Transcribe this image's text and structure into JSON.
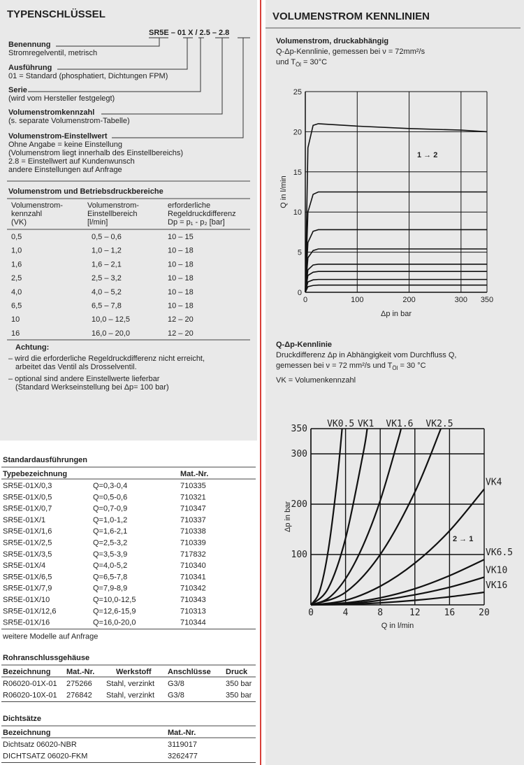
{
  "left": {
    "title": "TYPENSCHLÜSSEL",
    "code": [
      "SR5E",
      "–",
      "01",
      "X",
      "/",
      "2.5",
      "–",
      "2.8"
    ],
    "key": [
      {
        "label": "Benennung",
        "lines": [
          "Stromregelventil, metrisch"
        ]
      },
      {
        "label": "Ausführung",
        "lines": [
          "01 = Standard (phosphatiert, Dichtungen FPM)"
        ]
      },
      {
        "label": "Serie",
        "lines": [
          "(wird vom Hersteller festgelegt)"
        ]
      },
      {
        "label": "Volumenstromkennzahl",
        "lines": [
          "(s. separate Volumenstrom-Tabelle)"
        ]
      },
      {
        "label": "Volumenstrom-Einstellwert",
        "lines": [
          "Ohne Angabe = keine Einstellung",
          "(Volumenstrom liegt innerhalb des Einstellbereichs)",
          "2.8 = Einstellwert auf Kundenwunsch",
          "andere Einstellungen auf Anfrage"
        ]
      }
    ],
    "ranges": {
      "title": "Volumenstrom und Betriebsdruckbereiche",
      "headers": [
        [
          "Volumenstrom-",
          "kennzahl",
          "(VK)"
        ],
        [
          "Volumenstrom-",
          "Einstellbereich",
          "[l/min]"
        ],
        [
          "erforderliche",
          "Regeldruckdifferenz",
          "Dp = p₁ - p₂ [bar]"
        ]
      ],
      "rows": [
        [
          "0,5",
          "0,5 – 0,6",
          "10 – 15"
        ],
        [
          "1,0",
          "1,0 – 1,2",
          "10 – 18"
        ],
        [
          "1,6",
          "1,6 – 2,1",
          "10 – 18"
        ],
        [
          "2,5",
          "2,5 – 3,2",
          "10 – 18"
        ],
        [
          "4,0",
          "4,0 – 5,2",
          "10 – 18"
        ],
        [
          "6,5",
          "6,5 – 7,8",
          "10 – 18"
        ],
        [
          "10",
          "10,0 – 12,5",
          "12 – 20"
        ],
        [
          "16",
          "16,0 – 20,0",
          "12 – 20"
        ]
      ]
    },
    "note": {
      "title": "Achtung:",
      "items": [
        [
          "– wird die erforderliche Regeldruckdifferenz nicht erreicht,",
          "arbeitet das Ventil als Drosselventil."
        ],
        [
          "– optional sind andere Einstellwerte lieferbar",
          "(Standard Werkseinstellung bei Δp= 100 bar)"
        ]
      ]
    }
  },
  "standard": {
    "title": "Standardausführungen",
    "headers": [
      "Typebezeichnung",
      "Mat.-Nr."
    ],
    "rows": [
      [
        "SR5E-01X/0,3",
        "Q=0,3-0,4",
        "710335"
      ],
      [
        "SR5E-01X/0,5",
        "Q=0,5-0,6",
        "710321"
      ],
      [
        "SR5E-01X/0,7",
        "Q=0,7-0,9",
        "710347"
      ],
      [
        "SR5E-01X/1",
        "Q=1,0-1,2",
        "710337"
      ],
      [
        "SR5E-01X/1,6",
        "Q=1,6-2,1",
        "710338"
      ],
      [
        "SR5E-01X/2,5",
        "Q=2,5-3,2",
        "710339"
      ],
      [
        "SR5E-01X/3,5",
        "Q=3,5-3,9",
        "717832"
      ],
      [
        "SR5E-01X/4",
        "Q=4,0-5,2",
        "710340"
      ],
      [
        "SR5E-01X/6,5",
        "Q=6,5-7,8",
        "710341"
      ],
      [
        "SR5E-01X/7,9",
        "Q=7,9-8,9",
        "710342"
      ],
      [
        "SR5E-01X/10",
        "Q=10,0-12,5",
        "710343"
      ],
      [
        "SR5E-01X/12,6",
        "Q=12,6-15,9",
        "710313"
      ],
      [
        "SR5E-01X/16",
        "Q=16,0-20,0",
        "710344"
      ]
    ],
    "footer": "weitere Modelle auf Anfrage"
  },
  "housing": {
    "title": "Rohranschlussgehäuse",
    "headers": [
      "Bezeichnung",
      "Mat.-Nr.",
      "Werkstoff",
      "Anschlüsse",
      "Druck"
    ],
    "rows": [
      [
        "R06020-01X-01",
        "275266",
        "Stahl, verzinkt",
        "G3/8",
        "350 bar"
      ],
      [
        "R06020-10X-01",
        "276842",
        "Stahl, verzinkt",
        "G3/8",
        "350 bar"
      ]
    ]
  },
  "seals": {
    "title": "Dichtsätze",
    "headers": [
      "Bezeichnung",
      "Mat.-Nr."
    ],
    "rows": [
      [
        "Dichtsatz 06020-NBR",
        "3119017"
      ],
      [
        "DICHTSATZ 06020-FKM",
        "3262477"
      ]
    ]
  },
  "right": {
    "title": "VOLUMENSTROM KENNLINIEN",
    "sub1": {
      "title": "Volumenstrom, druckabhängig",
      "lines": [
        "Q-Δp-Kennlinie, gemessen bei ν = 72mm²/s"
      ],
      "temp": {
        "pre": "und T",
        "sub": "Öl",
        "post": " = 30°C"
      }
    },
    "sub2": {
      "title": "Q-Δp-Kennlinie",
      "lines": [
        "Druckdifferenz Δp in Abhängigkeit vom Durchfluss Q,"
      ],
      "temp": {
        "pre": "gemessen bei ν = 72 mm²/s und T",
        "sub": "Öl",
        "post": " = 30 °C"
      },
      "note": "VK = Volumenkennzahl"
    }
  },
  "chart_data": [
    {
      "type": "line",
      "xlabel": "Δp in bar",
      "ylabel": "Q in l/min",
      "annotation": "1 → 2",
      "xlim": [
        0,
        350
      ],
      "ylim": [
        0,
        25
      ],
      "xticks": [
        0,
        100,
        200,
        300,
        350
      ],
      "yticks": [
        0,
        5,
        10,
        15,
        20,
        25
      ],
      "grid": true,
      "x": [
        0,
        5,
        15,
        25,
        100,
        200,
        300,
        350
      ],
      "series": [
        {
          "color": "#111111",
          "values": [
            0,
            18,
            20.8,
            21,
            20.7,
            20.4,
            20.2,
            20
          ]
        },
        {
          "color": "#111111",
          "values": [
            0,
            10,
            12.2,
            12.5,
            12.5,
            12.5,
            12.5,
            12.5
          ]
        },
        {
          "color": "#111111",
          "values": [
            0,
            6.2,
            7.6,
            7.8,
            7.8,
            7.8,
            7.8,
            7.8
          ]
        },
        {
          "color": "#111111",
          "values": [
            0,
            4.3,
            5.2,
            5.4,
            5.4,
            5.4,
            5.4,
            5.4
          ]
        },
        {
          "color": "#111111",
          "values": [
            0,
            2.8,
            3.4,
            3.5,
            3.5,
            3.5,
            3.5,
            3.5
          ]
        },
        {
          "color": "#111111",
          "values": [
            0,
            2.1,
            2.5,
            2.6,
            2.6,
            2.6,
            2.6,
            2.6
          ]
        },
        {
          "color": "#111111",
          "values": [
            0,
            1.3,
            1.55,
            1.6,
            1.6,
            1.6,
            1.6,
            1.6
          ]
        },
        {
          "color": "#111111",
          "values": [
            0,
            0.7,
            0.85,
            0.9,
            0.9,
            0.9,
            0.9,
            0.9
          ]
        }
      ]
    },
    {
      "type": "line",
      "xlabel": "Q in l/min",
      "ylabel": "Δp in bar",
      "annotation": "2 → 1",
      "xlim": [
        0,
        20
      ],
      "ylim": [
        0,
        350
      ],
      "xticks": [
        0,
        4,
        8,
        12,
        16,
        20
      ],
      "yticks": [
        100,
        200,
        300,
        350
      ],
      "grid": true,
      "series": [
        {
          "name": "VK0.5",
          "label_position": "top",
          "color": "#111111",
          "x": [
            0,
            1,
            2,
            3,
            3.6
          ],
          "values": [
            0,
            27,
            108,
            243,
            350
          ]
        },
        {
          "name": "VK1",
          "label_position": "top",
          "color": "#111111",
          "x": [
            0,
            2,
            4,
            6,
            6.5
          ],
          "values": [
            0,
            33,
            132,
            298,
            350
          ]
        },
        {
          "name": "VK1.6",
          "label_position": "top",
          "color": "#111111",
          "x": [
            0,
            2,
            4,
            6,
            8,
            10,
            10.4
          ],
          "values": [
            0,
            13,
            52,
            117,
            207,
            324,
            350
          ]
        },
        {
          "name": "VK2.5",
          "label_position": "top",
          "color": "#111111",
          "x": [
            0,
            4,
            8,
            12,
            15
          ],
          "values": [
            0,
            25,
            100,
            224,
            350
          ]
        },
        {
          "name": "VK4",
          "label_position": "right",
          "color": "#111111",
          "x": [
            0,
            4,
            8,
            12,
            16,
            20
          ],
          "values": [
            0,
            9,
            37,
            83,
            147,
            230
          ]
        },
        {
          "name": "VK6.5",
          "label_position": "right",
          "color": "#111111",
          "x": [
            0,
            4,
            8,
            12,
            16,
            20
          ],
          "values": [
            0,
            4,
            14,
            32,
            58,
            90
          ]
        },
        {
          "name": "VK10",
          "label_position": "right",
          "color": "#111111",
          "x": [
            0,
            4,
            8,
            12,
            16,
            20
          ],
          "values": [
            0,
            2,
            9,
            20,
            35,
            55
          ]
        },
        {
          "name": "VK16",
          "label_position": "right",
          "color": "#111111",
          "x": [
            0,
            4,
            8,
            12,
            16,
            20
          ],
          "values": [
            0,
            1,
            4,
            9,
            16,
            25
          ]
        }
      ]
    }
  ]
}
